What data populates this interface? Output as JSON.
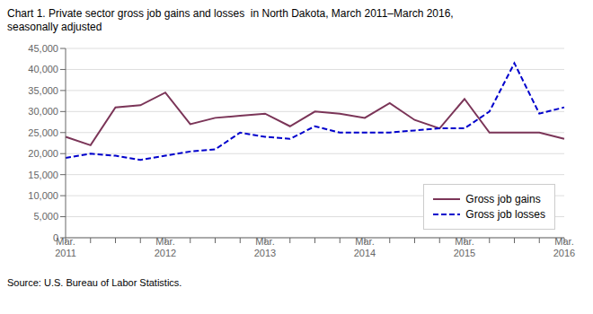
{
  "chart_data": {
    "type": "line",
    "title": "Chart 1. Private sector gross job gains and losses  in North Dakota, March 2011–March 2016,",
    "subtitle": "seasonally adjusted",
    "annotations": [
      "Source: U.S. Bureau of Labor Statistics."
    ],
    "categories": [
      "Mar.\n2011",
      null,
      null,
      null,
      "Mar.\n2012",
      null,
      null,
      null,
      "Mar.\n2013",
      null,
      null,
      null,
      "Mar.\n2014",
      null,
      null,
      null,
      "Mar.\n2015",
      null,
      null,
      null,
      "Mar.\n2016"
    ],
    "series": [
      {
        "name": "Gross job gains",
        "color": "#7B3558",
        "line_style": "solid",
        "values": [
          24000,
          22000,
          31000,
          31500,
          34500,
          27000,
          28500,
          29000,
          29500,
          26500,
          30000,
          29500,
          28500,
          32000,
          28000,
          26000,
          33000,
          25000,
          25000,
          25000,
          23500
        ]
      },
      {
        "name": "Gross job losses",
        "color": "#0000CC",
        "line_style": "dashed",
        "values": [
          19000,
          20000,
          19500,
          18500,
          19500,
          20500,
          21000,
          25000,
          24000,
          23500,
          26500,
          25000,
          25000,
          25000,
          25500,
          26000,
          26000,
          30000,
          41500,
          29500,
          31000
        ]
      }
    ],
    "ylim": [
      0,
      45000
    ],
    "yticks": [
      0,
      {
        "value": 5000,
        "label": "5,000"
      },
      {
        "value": 10000,
        "label": "10,000"
      },
      {
        "value": 15000,
        "label": "15,000"
      },
      {
        "value": 20000,
        "label": "20,000"
      },
      {
        "value": 25000,
        "label": "25,000"
      },
      {
        "value": 30000,
        "label": "30,000"
      },
      {
        "value": 35000,
        "label": "35,000"
      },
      {
        "value": 40000,
        "label": "40,000"
      },
      {
        "value": 45000,
        "label": "45,000"
      }
    ],
    "grid": true,
    "legend": "lower right"
  }
}
